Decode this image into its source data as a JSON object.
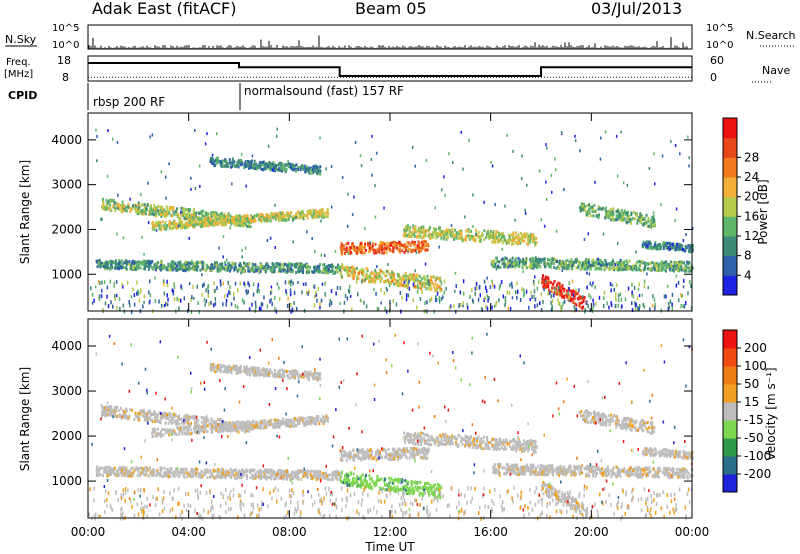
{
  "header": {
    "station": "Adak East (fitACF)",
    "beam": "Beam 05",
    "date": "03/Jul/2013"
  },
  "chart_data": [
    {
      "type": "line",
      "id": "noise-panel",
      "left_label": "N.Sky",
      "right_label": "N.Search",
      "left_ticks": [
        "10^5",
        "10^0"
      ],
      "right_ticks": [
        "10^5",
        "10^0"
      ]
    },
    {
      "type": "line",
      "id": "freq-panel",
      "ylabel": "Freq.",
      "yunit": "[MHz]",
      "y_ticks": [
        "18",
        "8"
      ],
      "right_label": "Nave",
      "right_ticks": [
        "60",
        "0"
      ],
      "freq_steps": [
        {
          "start_h": 0,
          "end_h": 6,
          "level": 0.72
        },
        {
          "start_h": 6,
          "end_h": 10,
          "level": 0.55
        },
        {
          "start_h": 10,
          "end_h": 18,
          "level": 0.2
        },
        {
          "start_h": 18,
          "end_h": 24,
          "level": 0.55
        }
      ],
      "nave_level": 0.15
    },
    {
      "type": "table",
      "id": "cpid-panel",
      "label": "CPID",
      "segments": [
        {
          "start_h": 0,
          "end_h": 6,
          "text": "rbsp 200 RF"
        },
        {
          "start_h": 6,
          "end_h": 24,
          "text": "normalsound (fast) 157 RF"
        }
      ]
    },
    {
      "type": "heatmap",
      "id": "power-panel",
      "ylabel": "Slant Range [km]",
      "ylim": [
        180,
        4600
      ],
      "y_ticks": [
        1000,
        2000,
        3000,
        4000
      ],
      "xlim": [
        0,
        24
      ],
      "x_ticks": [
        0,
        4,
        8,
        12,
        16,
        20,
        24
      ],
      "colorbar_label": "Power [dB]",
      "colorbar_ticks": [
        4,
        8,
        12,
        16,
        20,
        24,
        28
      ],
      "colorbar_colors": [
        "#1f22e0",
        "#2f5fa8",
        "#3d8a76",
        "#5fb56a",
        "#b7c94b",
        "#f0b03a",
        "#f07a1e",
        "#e8471b",
        "#ee1111"
      ],
      "bands": [
        {
          "x0": 0.5,
          "x1": 6.5,
          "r0": 2600,
          "r1": 2200,
          "w": 120,
          "p": 14
        },
        {
          "x0": 2.5,
          "x1": 9.5,
          "r0": 2100,
          "r1": 2400,
          "w": 90,
          "p": 16
        },
        {
          "x0": 0.3,
          "x1": 10.0,
          "r0": 1250,
          "r1": 1150,
          "w": 100,
          "p": 10
        },
        {
          "x0": 4.8,
          "x1": 9.2,
          "r0": 3550,
          "r1": 3350,
          "w": 90,
          "p": 9
        },
        {
          "x0": 10.0,
          "x1": 13.5,
          "r0": 1600,
          "r1": 1650,
          "w": 120,
          "p": 24
        },
        {
          "x0": 10.0,
          "x1": 14.0,
          "r0": 1100,
          "r1": 800,
          "w": 150,
          "p": 17
        },
        {
          "x0": 12.5,
          "x1": 17.8,
          "r0": 2000,
          "r1": 1800,
          "w": 130,
          "p": 16
        },
        {
          "x0": 16.0,
          "x1": 24.0,
          "r0": 1300,
          "r1": 1200,
          "w": 110,
          "p": 11
        },
        {
          "x0": 18.0,
          "x1": 19.8,
          "r0": 900,
          "r1": 350,
          "w": 140,
          "p": 29
        },
        {
          "x0": 19.5,
          "x1": 22.5,
          "r0": 2500,
          "r1": 2200,
          "w": 130,
          "p": 12
        },
        {
          "x0": 22.0,
          "x1": 24.0,
          "r0": 1700,
          "r1": 1600,
          "w": 80,
          "p": 8
        }
      ],
      "noise_level": 4
    },
    {
      "type": "heatmap",
      "id": "velocity-panel",
      "ylabel": "Slant Range [km]",
      "ylim": [
        180,
        4600
      ],
      "y_ticks": [
        1000,
        2000,
        3000,
        4000
      ],
      "xlim": [
        0,
        24
      ],
      "x_ticks": [
        0,
        4,
        8,
        12,
        16,
        20,
        24
      ],
      "xlabel": "Time UT",
      "x_tick_labels": [
        "00:00",
        "04:00",
        "08:00",
        "12:00",
        "16:00",
        "20:00",
        "00:00"
      ],
      "colorbar_label": "Velocity [m s⁻¹]",
      "colorbar_ticks": [
        200,
        100,
        50,
        15,
        -15,
        -50,
        -100,
        -200
      ],
      "colorbar_colors": [
        "#1f22d8",
        "#2a6e8a",
        "#2f9a4a",
        "#7ed651",
        "#bdbdbd",
        "#f0a020",
        "#ee7c16",
        "#ef4a14",
        "#ee1111"
      ],
      "ground_scatter_color": "#bdbdbd",
      "bands": [
        {
          "x0": 0.5,
          "x1": 6.5,
          "r0": 2600,
          "r1": 2200,
          "w": 120,
          "v": 0
        },
        {
          "x0": 2.5,
          "x1": 9.5,
          "r0": 2100,
          "r1": 2400,
          "w": 90,
          "v": 0
        },
        {
          "x0": 0.3,
          "x1": 10.0,
          "r0": 1250,
          "r1": 1150,
          "w": 100,
          "v": 0
        },
        {
          "x0": 4.8,
          "x1": 9.2,
          "r0": 3550,
          "r1": 3350,
          "w": 90,
          "v": 0
        },
        {
          "x0": 10.0,
          "x1": 13.5,
          "r0": 1600,
          "r1": 1650,
          "w": 120,
          "v": 0
        },
        {
          "x0": 10.0,
          "x1": 14.0,
          "r0": 1100,
          "r1": 800,
          "w": 150,
          "v": 60
        },
        {
          "x0": 12.5,
          "x1": 17.8,
          "r0": 2000,
          "r1": 1800,
          "w": 130,
          "v": 0
        },
        {
          "x0": 16.0,
          "x1": 24.0,
          "r0": 1300,
          "r1": 1200,
          "w": 110,
          "v": 0
        },
        {
          "x0": 18.0,
          "x1": 19.8,
          "r0": 900,
          "r1": 350,
          "w": 140,
          "v": 0
        },
        {
          "x0": 19.5,
          "x1": 22.5,
          "r0": 2500,
          "r1": 2200,
          "w": 130,
          "v": 0
        },
        {
          "x0": 22.0,
          "x1": 24.0,
          "r0": 1700,
          "r1": 1600,
          "w": 80,
          "v": 0
        }
      ]
    }
  ]
}
